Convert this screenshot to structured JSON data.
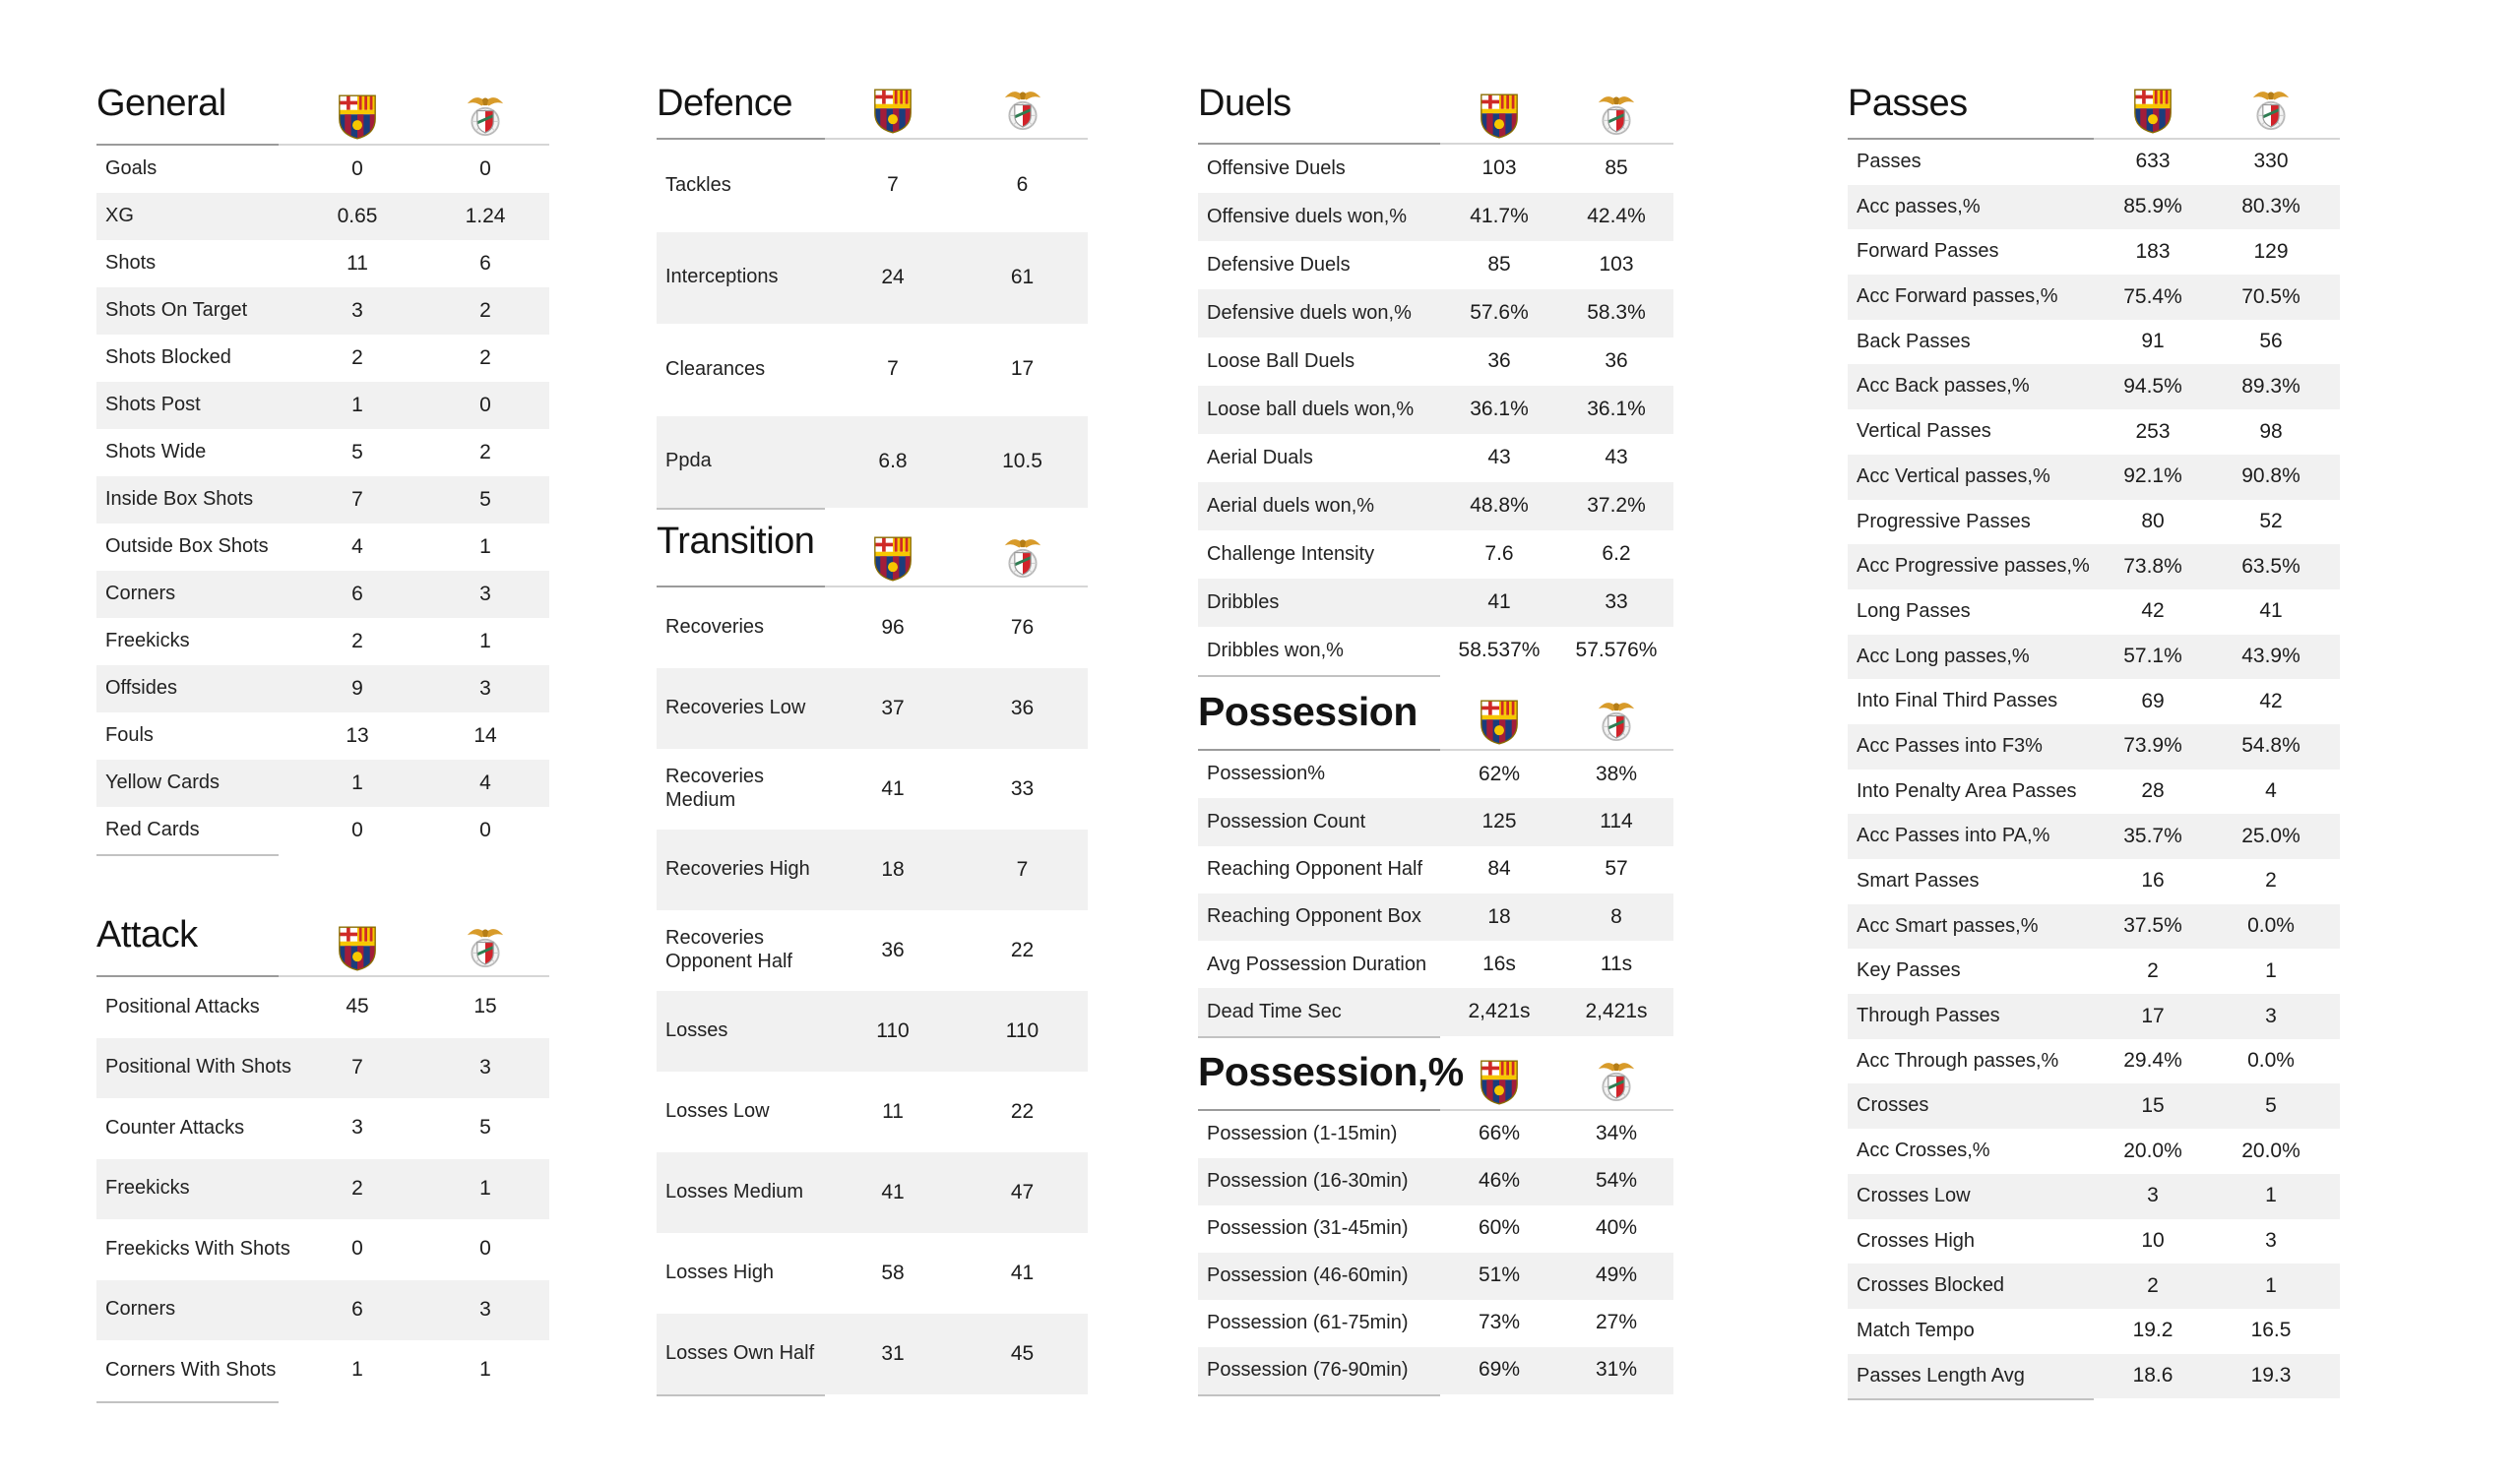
{
  "teams": {
    "home_crest_icon": "barcelona-crest-icon",
    "away_crest_icon": "benfica-crest-icon"
  },
  "colors": {
    "background": "#ffffff",
    "row_alt_background": "#f1f1f1",
    "text": "#1f1f1f",
    "title": "#141414",
    "header_line_light": "#d6d6d6",
    "header_line_dark": "#9b9b9b",
    "barcelona_blue": "#1a3d7c",
    "barcelona_garnet": "#a21d3a",
    "barcelona_gold": "#f7c700",
    "benfica_red": "#d2232a",
    "benfica_gold": "#d89b2a"
  },
  "chart_data": [
    {
      "type": "table",
      "id": "general",
      "title": "General",
      "title_bold": false,
      "column_slot": 1,
      "header_icons": [
        "barcelona-crest-icon",
        "benfica-crest-icon"
      ],
      "rows": [
        [
          "Goals",
          "0",
          "0"
        ],
        [
          "XG",
          "0.65",
          "1.24"
        ],
        [
          "Shots",
          "11",
          "6"
        ],
        [
          "Shots On Target",
          "3",
          "2"
        ],
        [
          "Shots Blocked",
          "2",
          "2"
        ],
        [
          "Shots Post",
          "1",
          "0"
        ],
        [
          "Shots Wide",
          "5",
          "2"
        ],
        [
          "Inside Box Shots",
          "7",
          "5"
        ],
        [
          "Outside Box Shots",
          "4",
          "1"
        ],
        [
          "Corners",
          "6",
          "3"
        ],
        [
          "Freekicks",
          "2",
          "1"
        ],
        [
          "Offsides",
          "9",
          "3"
        ],
        [
          "Fouls",
          "13",
          "14"
        ],
        [
          "Yellow Cards",
          "1",
          "4"
        ],
        [
          "Red Cards",
          "0",
          "0"
        ]
      ]
    },
    {
      "type": "table",
      "id": "attack",
      "title": "Attack",
      "title_bold": false,
      "column_slot": 1,
      "header_icons": [
        "barcelona-crest-icon",
        "benfica-crest-icon"
      ],
      "rows": [
        [
          "Positional Attacks",
          "45",
          "15"
        ],
        [
          "Positional With Shots",
          "7",
          "3"
        ],
        [
          "Counter Attacks",
          "3",
          "5"
        ],
        [
          "Freekicks",
          "2",
          "1"
        ],
        [
          "Freekicks With Shots",
          "0",
          "0"
        ],
        [
          "Corners",
          "6",
          "3"
        ],
        [
          "Corners With Shots",
          "1",
          "1"
        ]
      ]
    },
    {
      "type": "table",
      "id": "defence",
      "title": "Defence",
      "title_bold": false,
      "column_slot": 2,
      "header_icons": [
        "barcelona-crest-icon",
        "benfica-crest-icon"
      ],
      "rows": [
        [
          "Tackles",
          "7",
          "6"
        ],
        [
          "Interceptions",
          "24",
          "61"
        ],
        [
          "Clearances",
          "7",
          "17"
        ],
        [
          "Ppda",
          "6.8",
          "10.5"
        ]
      ]
    },
    {
      "type": "table",
      "id": "transition",
      "title": "Transition",
      "title_bold": false,
      "column_slot": 2,
      "header_icons": [
        "barcelona-crest-icon",
        "benfica-crest-icon"
      ],
      "rows": [
        [
          "Recoveries",
          "96",
          "76"
        ],
        [
          "Recoveries Low",
          "37",
          "36"
        ],
        [
          "Recoveries Medium",
          "41",
          "33"
        ],
        [
          "Recoveries High",
          "18",
          "7"
        ],
        [
          "Recoveries Opponent Half",
          "36",
          "22"
        ],
        [
          "Losses",
          "110",
          "110"
        ],
        [
          "Losses Low",
          "11",
          "22"
        ],
        [
          "Losses Medium",
          "41",
          "47"
        ],
        [
          "Losses High",
          "58",
          "41"
        ],
        [
          "Losses Own Half",
          "31",
          "45"
        ]
      ]
    },
    {
      "type": "table",
      "id": "duels",
      "title": "Duels",
      "title_bold": false,
      "column_slot": 3,
      "header_icons": [
        "barcelona-crest-icon",
        "benfica-crest-icon"
      ],
      "rows": [
        [
          "Offensive Duels",
          "103",
          "85"
        ],
        [
          "Offensive duels won,%",
          "41.7%",
          "42.4%"
        ],
        [
          "Defensive Duels",
          "85",
          "103"
        ],
        [
          "Defensive duels won,%",
          "57.6%",
          "58.3%"
        ],
        [
          "Loose Ball Duels",
          "36",
          "36"
        ],
        [
          "Loose ball duels won,%",
          "36.1%",
          "36.1%"
        ],
        [
          "Aerial Duals",
          "43",
          "43"
        ],
        [
          "Aerial duels won,%",
          "48.8%",
          "37.2%"
        ],
        [
          "Challenge Intensity",
          "7.6",
          "6.2"
        ],
        [
          "Dribbles",
          "41",
          "33"
        ],
        [
          "Dribbles won,%",
          "58.537%",
          "57.576%"
        ]
      ]
    },
    {
      "type": "table",
      "id": "possession",
      "title": "Possession",
      "title_bold": true,
      "column_slot": 3,
      "header_icons": [
        "barcelona-crest-icon",
        "benfica-crest-icon"
      ],
      "rows": [
        [
          "Possession%",
          "62%",
          "38%"
        ],
        [
          "Possession Count",
          "125",
          "114"
        ],
        [
          "Reaching Opponent Half",
          "84",
          "57"
        ],
        [
          "Reaching Opponent Box",
          "18",
          "8"
        ],
        [
          "Avg Possession Duration",
          "16s",
          "11s"
        ],
        [
          "Dead Time Sec",
          "2,421s",
          "2,421s"
        ]
      ]
    },
    {
      "type": "table",
      "id": "possession_pct",
      "title": "Possession,%",
      "title_bold": true,
      "column_slot": 3,
      "header_icons": [
        "barcelona-crest-icon",
        "benfica-crest-icon"
      ],
      "rows": [
        [
          "Possession (1-15min)",
          "66%",
          "34%"
        ],
        [
          "Possession (16-30min)",
          "46%",
          "54%"
        ],
        [
          "Possession (31-45min)",
          "60%",
          "40%"
        ],
        [
          "Possession (46-60min)",
          "51%",
          "49%"
        ],
        [
          "Possession (61-75min)",
          "73%",
          "27%"
        ],
        [
          "Possession (76-90min)",
          "69%",
          "31%"
        ]
      ]
    },
    {
      "type": "table",
      "id": "passes",
      "title": "Passes",
      "title_bold": false,
      "column_slot": 4,
      "header_icons": [
        "barcelona-crest-icon",
        "benfica-crest-icon"
      ],
      "rows": [
        [
          "Passes",
          "633",
          "330"
        ],
        [
          "Acc passes,%",
          "85.9%",
          "80.3%"
        ],
        [
          "Forward Passes",
          "183",
          "129"
        ],
        [
          "Acc Forward passes,%",
          "75.4%",
          "70.5%"
        ],
        [
          "Back Passes",
          "91",
          "56"
        ],
        [
          "Acc Back passes,%",
          "94.5%",
          "89.3%"
        ],
        [
          "Vertical Passes",
          "253",
          "98"
        ],
        [
          "Acc Vertical passes,%",
          "92.1%",
          "90.8%"
        ],
        [
          "Progressive Passes",
          "80",
          "52"
        ],
        [
          "Acc Progressive passes,%",
          "73.8%",
          "63.5%"
        ],
        [
          "Long Passes",
          "42",
          "41"
        ],
        [
          "Acc Long passes,%",
          "57.1%",
          "43.9%"
        ],
        [
          "Into Final Third Passes",
          "69",
          "42"
        ],
        [
          "Acc Passes into F3%",
          "73.9%",
          "54.8%"
        ],
        [
          "Into Penalty Area Passes",
          "28",
          "4"
        ],
        [
          "Acc Passes into PA,%",
          "35.7%",
          "25.0%"
        ],
        [
          "Smart Passes",
          "16",
          "2"
        ],
        [
          "Acc Smart passes,%",
          "37.5%",
          "0.0%"
        ],
        [
          "Key Passes",
          "2",
          "1"
        ],
        [
          "Through Passes",
          "17",
          "3"
        ],
        [
          "Acc Through passes,%",
          "29.4%",
          "0.0%"
        ],
        [
          "Crosses",
          "15",
          "5"
        ],
        [
          "Acc Crosses,%",
          "20.0%",
          "20.0%"
        ],
        [
          "Crosses Low",
          "3",
          "1"
        ],
        [
          "Crosses High",
          "10",
          "3"
        ],
        [
          "Crosses Blocked",
          "2",
          "1"
        ],
        [
          "Match Tempo",
          "19.2",
          "16.5"
        ],
        [
          "Passes Length Avg",
          "18.6",
          "19.3"
        ]
      ]
    }
  ]
}
